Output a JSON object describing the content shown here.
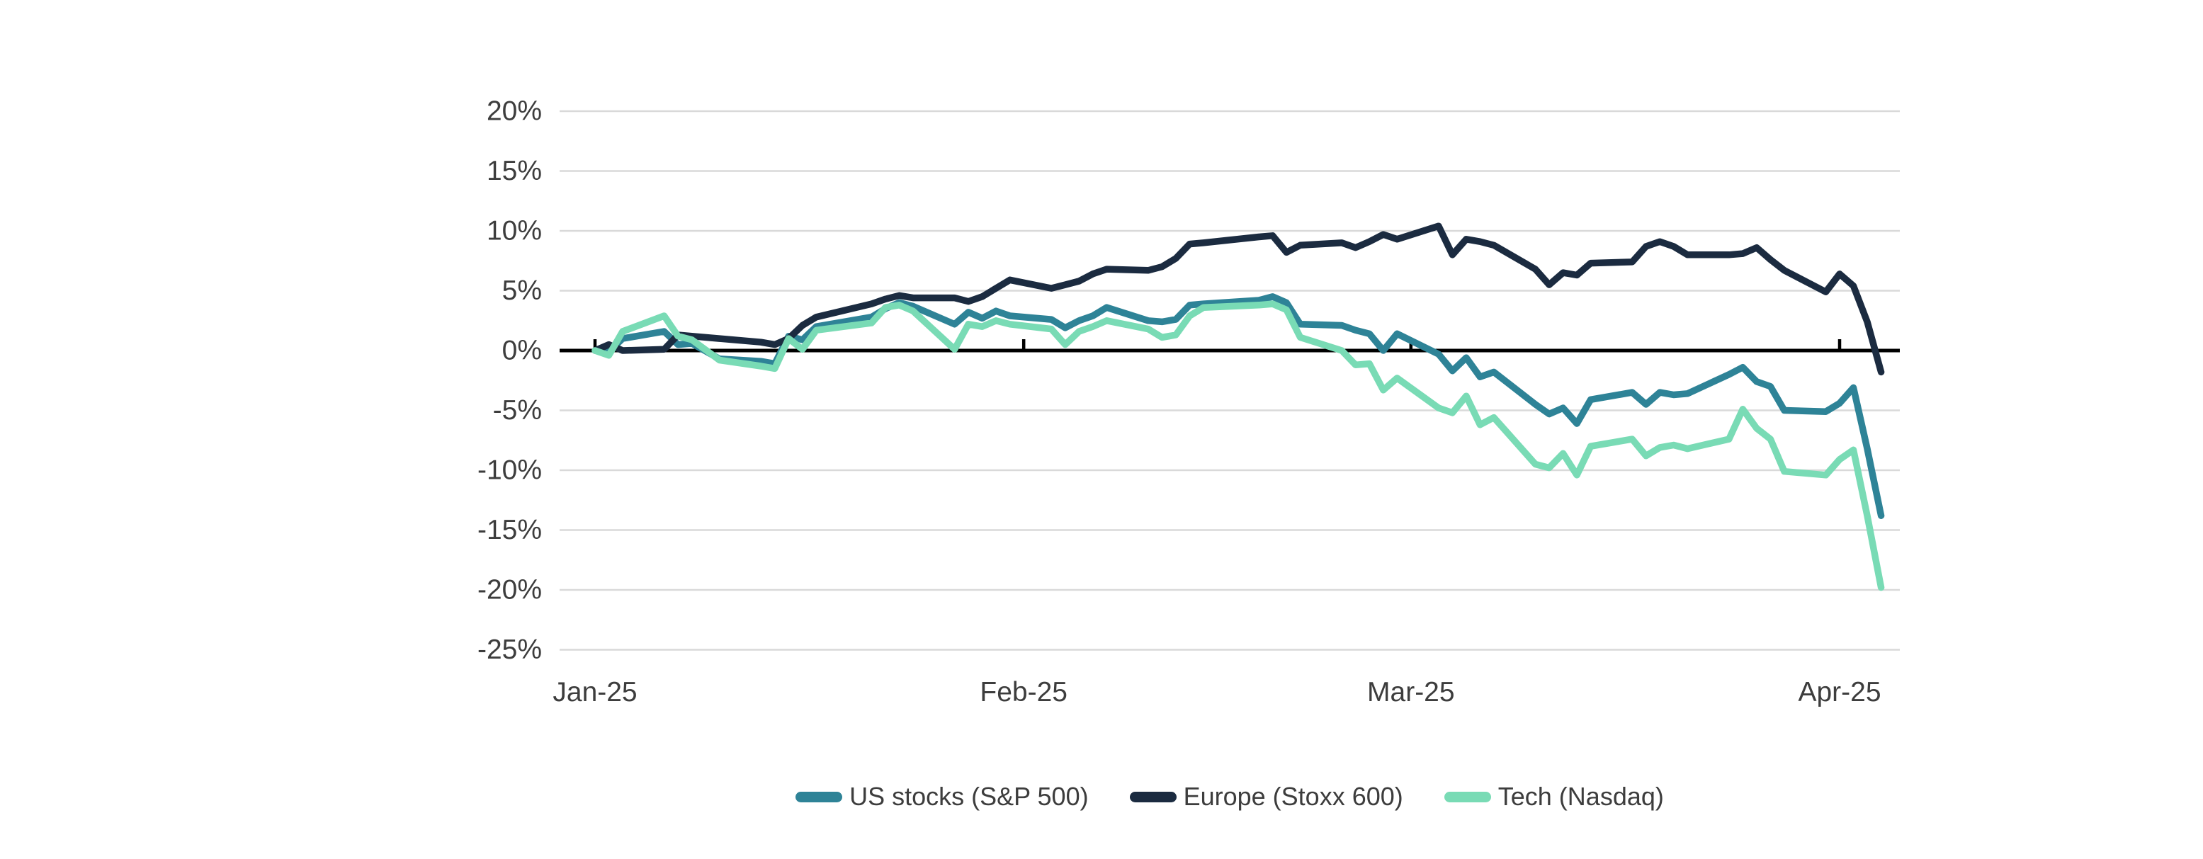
{
  "chart_data": {
    "type": "line",
    "title": "",
    "xlabel": "",
    "ylabel": "",
    "unit": "%",
    "grid": "horizontal",
    "zero_axis_line": true,
    "legend_position": "bottom-center",
    "colors": {
      "background": "#ffffff",
      "gridline": "#d9d9d9",
      "zero_line": "#000000",
      "tick_mark": "#000000",
      "label_text": "#3d3d3d"
    },
    "y_axis": {
      "ylim": [
        -25,
        20
      ],
      "tick_values": [
        20,
        15,
        10,
        5,
        0,
        -5,
        -10,
        -15,
        -20,
        -25
      ],
      "tick_labels": [
        "20%",
        "15%",
        "10%",
        "5%",
        "0%",
        "-5%",
        "-10%",
        "-15%",
        "-20%",
        "-25%"
      ]
    },
    "x_axis": {
      "day_range": [
        1,
        94
      ],
      "tick_days": [
        1,
        32,
        60,
        91
      ],
      "tick_labels": [
        "Jan-25",
        "Feb-25",
        "Mar-25",
        "Apr-25"
      ]
    },
    "x_days": [
      1,
      2,
      3,
      6,
      7,
      8,
      10,
      13,
      14,
      15,
      16,
      17,
      21,
      22,
      23,
      24,
      27,
      28,
      29,
      30,
      31,
      34,
      35,
      36,
      37,
      38,
      41,
      42,
      43,
      44,
      45,
      49,
      50,
      51,
      52,
      55,
      56,
      57,
      58,
      59,
      62,
      63,
      64,
      65,
      66,
      69,
      70,
      71,
      72,
      73,
      76,
      77,
      78,
      79,
      80,
      83,
      84,
      85,
      86,
      87,
      90,
      91,
      92,
      93,
      94
    ],
    "series": [
      {
        "name": "US stocks (S&P 500)",
        "color": "#2E8397",
        "values": [
          0.0,
          -0.1,
          1.0,
          1.6,
          0.5,
          0.6,
          -0.7,
          -0.9,
          -1.1,
          1.2,
          0.9,
          2.0,
          2.8,
          3.5,
          4.0,
          3.7,
          2.2,
          3.2,
          2.7,
          3.3,
          2.9,
          2.6,
          1.9,
          2.5,
          2.9,
          3.6,
          2.5,
          2.4,
          2.6,
          3.8,
          3.9,
          4.2,
          4.5,
          4.0,
          2.2,
          2.1,
          1.7,
          1.4,
          0.0,
          1.4,
          -0.3,
          -1.7,
          -0.6,
          -2.2,
          -1.8,
          -4.5,
          -5.3,
          -4.8,
          -6.1,
          -4.1,
          -3.5,
          -4.5,
          -3.5,
          -3.7,
          -3.6,
          -2.0,
          -1.4,
          -2.6,
          -3.0,
          -5.0,
          -5.1,
          -4.4,
          -3.1,
          -8.2,
          -13.8
        ]
      },
      {
        "name": "Europe (Stoxx 600)",
        "color": "#1B2B40",
        "values": [
          0.0,
          0.5,
          0.0,
          0.1,
          1.3,
          1.2,
          1.0,
          0.7,
          0.5,
          1.0,
          2.1,
          2.8,
          3.9,
          4.3,
          4.6,
          4.4,
          4.4,
          4.1,
          4.5,
          5.2,
          5.9,
          5.2,
          5.5,
          5.8,
          6.4,
          6.8,
          6.7,
          7.0,
          7.7,
          8.9,
          9.0,
          9.5,
          9.6,
          8.2,
          8.8,
          9.0,
          8.6,
          9.1,
          9.7,
          9.3,
          10.4,
          8.0,
          9.3,
          9.1,
          8.8,
          6.8,
          5.5,
          6.5,
          6.3,
          7.3,
          7.4,
          8.7,
          9.1,
          8.7,
          8.0,
          8.0,
          8.1,
          8.6,
          7.6,
          6.7,
          4.9,
          6.4,
          5.4,
          2.4,
          -1.8
        ]
      },
      {
        "name": "Tech (Nasdaq)",
        "color": "#79DBB5",
        "values": [
          0.0,
          -0.4,
          1.6,
          2.9,
          1.2,
          0.9,
          -0.8,
          -1.3,
          -1.5,
          1.0,
          0.1,
          1.7,
          2.3,
          3.6,
          3.8,
          3.3,
          0.1,
          2.2,
          2.0,
          2.5,
          2.2,
          1.8,
          0.5,
          1.6,
          2.0,
          2.5,
          1.8,
          1.1,
          1.3,
          2.9,
          3.6,
          3.8,
          3.9,
          3.4,
          1.1,
          0.0,
          -1.2,
          -1.1,
          -3.3,
          -2.3,
          -4.8,
          -5.2,
          -3.8,
          -6.2,
          -5.6,
          -9.5,
          -9.8,
          -8.6,
          -10.4,
          -8.0,
          -7.4,
          -8.8,
          -8.1,
          -7.9,
          -8.2,
          -7.4,
          -4.9,
          -6.5,
          -7.4,
          -10.1,
          -10.4,
          -9.1,
          -8.3,
          -13.8,
          -19.8
        ]
      }
    ]
  }
}
